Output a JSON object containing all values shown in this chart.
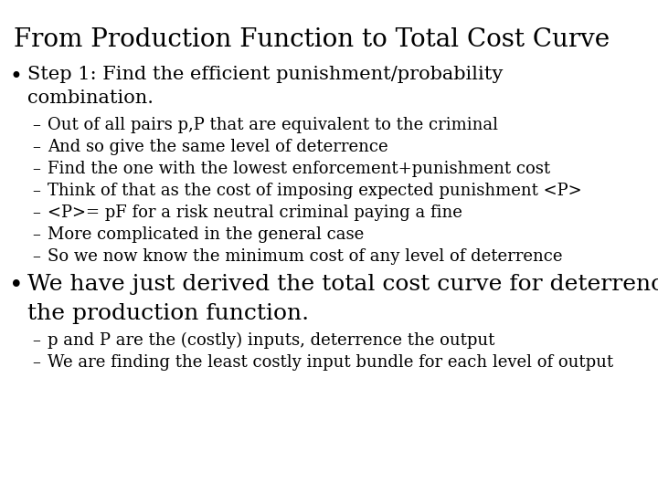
{
  "title": "From Production Function to Total Cost Curve",
  "title_fontsize": 20,
  "background_color": "#ffffff",
  "text_color": "#000000",
  "bullet1_line1": "Step 1: Find the efficient punishment/probability",
  "bullet1_line2": "combination.",
  "sub_bullets1": [
    "Out of all pairs p,P that are equivalent to the criminal",
    "And so give the same level of deterrence",
    "Find the one with the lowest enforcement+punishment cost",
    "Think of that as the cost of imposing expected punishment <P>",
    "<P>= pF for a risk neutral criminal paying a fine",
    "More complicated in the general case",
    "So we now know the minimum cost of any level of deterrence"
  ],
  "bullet2_line1": "We have just derived the total cost curve for deterrence from",
  "bullet2_line2": "the production function.",
  "sub_bullets2": [
    "p and P are the (costly) inputs, deterrence the output",
    "We are finding the least costly input bundle for each level of output"
  ],
  "title_fontsize_pt": 20,
  "bullet_fontsize_pt": 15,
  "sub_bullet_fontsize_pt": 13,
  "bullet_symbol": "•",
  "dash_symbol": "–",
  "font_family": "DejaVu Serif"
}
